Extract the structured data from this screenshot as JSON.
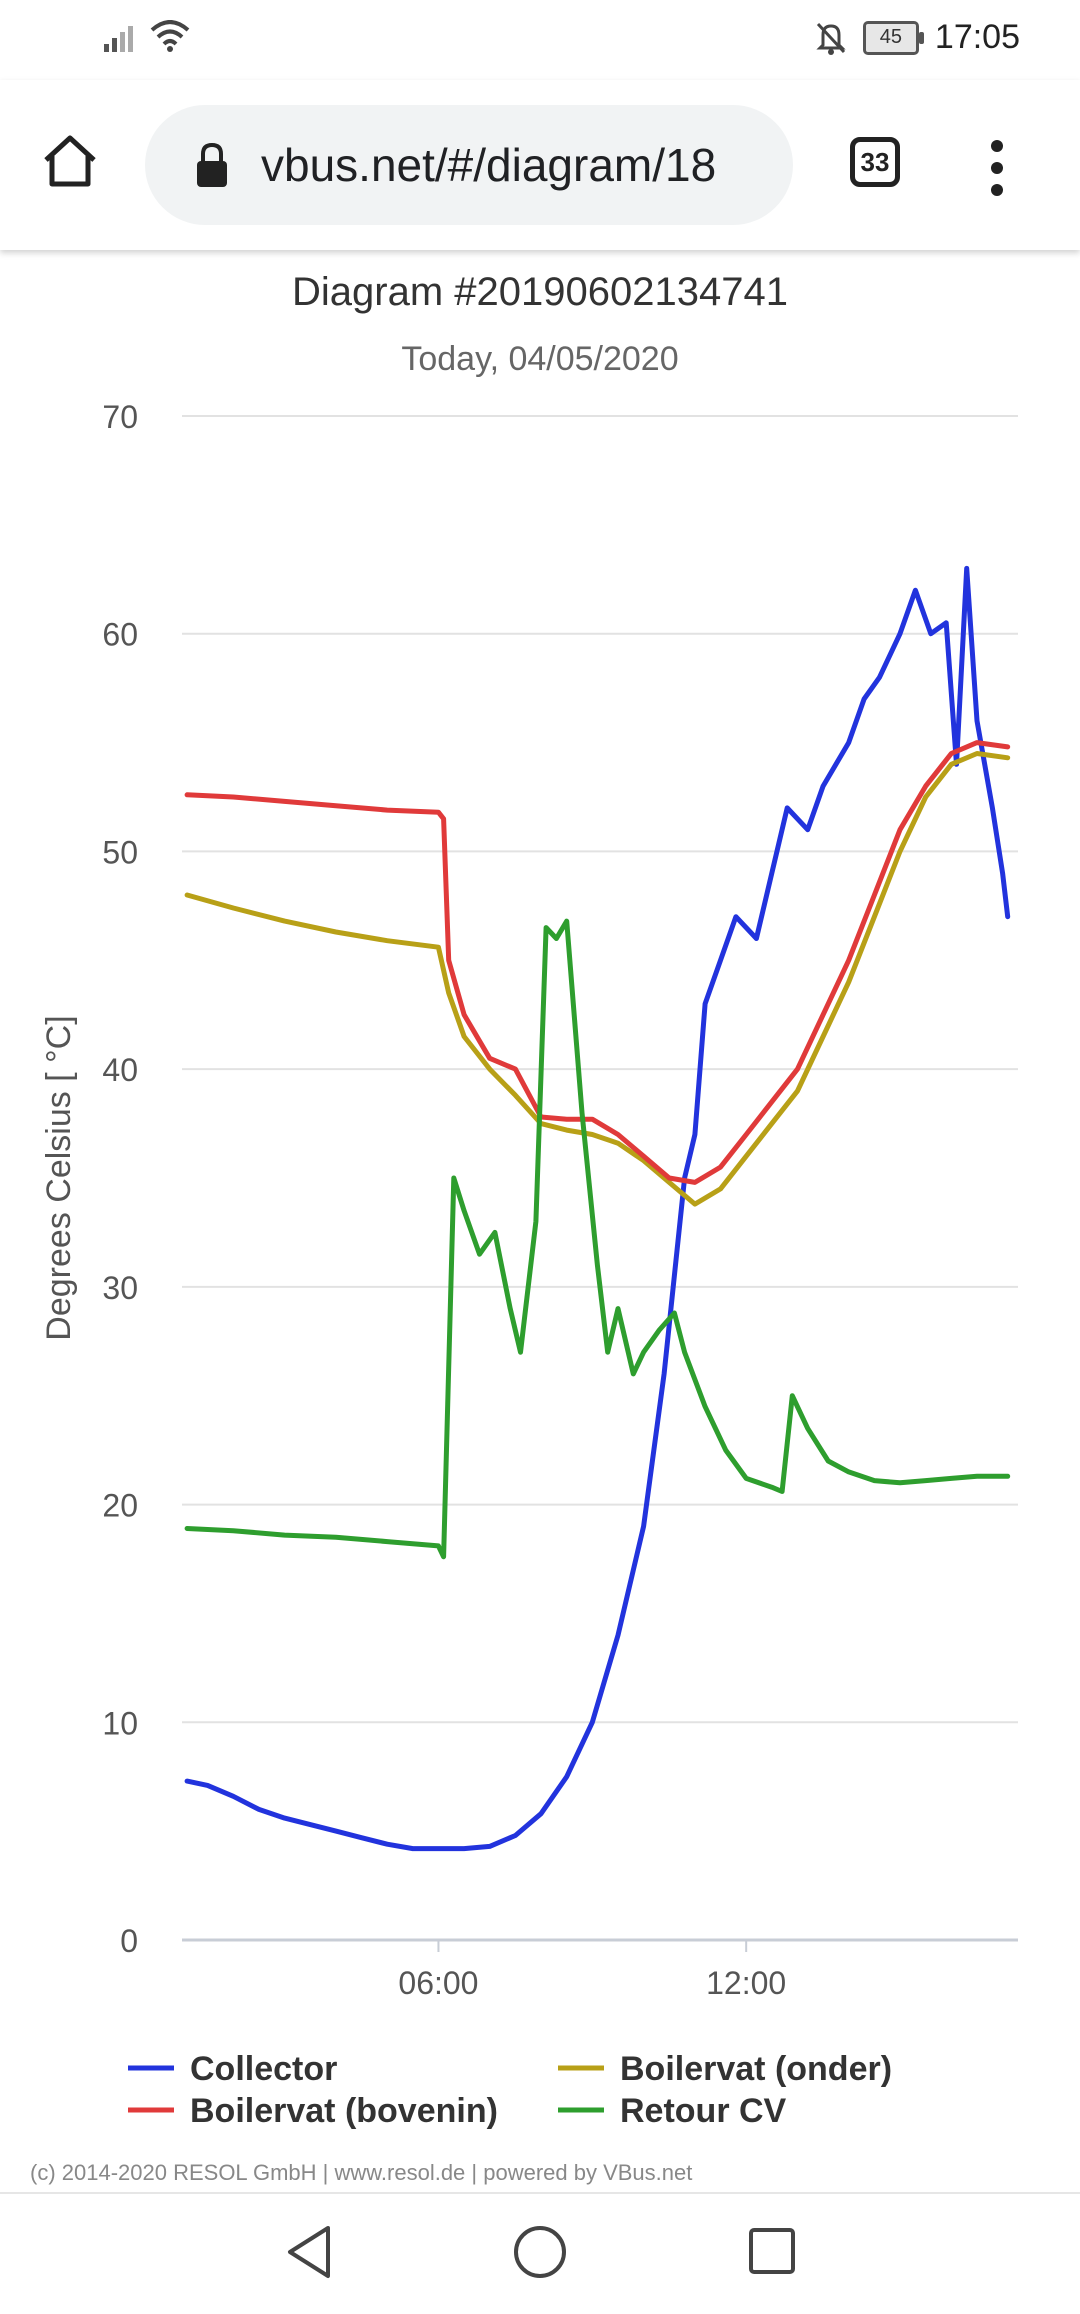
{
  "status_bar": {
    "time": "17:05",
    "battery": "45",
    "icons": [
      "signal-icon",
      "wifi-icon",
      "bell-off-icon",
      "battery-icon"
    ]
  },
  "browser": {
    "url": "vbus.net/#/diagram/18",
    "tab_count": "33",
    "icons": [
      "home-icon",
      "lock-icon",
      "tabs-icon",
      "more-icon"
    ]
  },
  "chart_data": {
    "type": "line",
    "title": "Diagram #20190602134741",
    "subtitle": "Today, 04/05/2020",
    "ylabel": "Degrees Celsius [ °C]",
    "xlabel": "",
    "ylim": [
      0,
      70
    ],
    "yticks": [
      "0",
      "10",
      "20",
      "30",
      "40",
      "50",
      "60",
      "70"
    ],
    "xlim": [
      1.0,
      17.3
    ],
    "xticks": [
      {
        "value": 6,
        "label": "06:00"
      },
      {
        "value": 12,
        "label": "12:00"
      }
    ],
    "grid": true,
    "legend_position": "bottom",
    "series": [
      {
        "name": "Collector",
        "color": "#2233dd",
        "points": [
          [
            1.1,
            7.3
          ],
          [
            1.5,
            7.1
          ],
          [
            2.0,
            6.6
          ],
          [
            2.5,
            6.0
          ],
          [
            3.0,
            5.6
          ],
          [
            3.5,
            5.3
          ],
          [
            4.0,
            5.0
          ],
          [
            4.5,
            4.7
          ],
          [
            5.0,
            4.4
          ],
          [
            5.5,
            4.2
          ],
          [
            6.0,
            4.2
          ],
          [
            6.5,
            4.2
          ],
          [
            7.0,
            4.3
          ],
          [
            7.5,
            4.8
          ],
          [
            8.0,
            5.8
          ],
          [
            8.5,
            7.5
          ],
          [
            9.0,
            10.0
          ],
          [
            9.5,
            14.0
          ],
          [
            10.0,
            19.0
          ],
          [
            10.4,
            26.0
          ],
          [
            10.8,
            35.0
          ],
          [
            11.0,
            37.0
          ],
          [
            11.2,
            43.0
          ],
          [
            11.5,
            45.0
          ],
          [
            11.8,
            47.0
          ],
          [
            12.2,
            46.0
          ],
          [
            12.5,
            49.0
          ],
          [
            12.8,
            52.0
          ],
          [
            13.2,
            51.0
          ],
          [
            13.5,
            53.0
          ],
          [
            14.0,
            55.0
          ],
          [
            14.3,
            57.0
          ],
          [
            14.6,
            58.0
          ],
          [
            15.0,
            60.0
          ],
          [
            15.3,
            62.0
          ],
          [
            15.6,
            60.0
          ],
          [
            15.9,
            60.5
          ],
          [
            16.1,
            54.0
          ],
          [
            16.3,
            63.0
          ],
          [
            16.5,
            56.0
          ],
          [
            16.8,
            52.0
          ],
          [
            17.0,
            49.0
          ],
          [
            17.1,
            47.0
          ]
        ]
      },
      {
        "name": "Boilervat (onder)",
        "color": "#b8a017",
        "points": [
          [
            1.1,
            48.0
          ],
          [
            2.0,
            47.4
          ],
          [
            3.0,
            46.8
          ],
          [
            4.0,
            46.3
          ],
          [
            5.0,
            45.9
          ],
          [
            6.0,
            45.6
          ],
          [
            6.2,
            43.5
          ],
          [
            6.5,
            41.5
          ],
          [
            7.0,
            40.0
          ],
          [
            7.5,
            38.8
          ],
          [
            8.0,
            37.5
          ],
          [
            8.5,
            37.2
          ],
          [
            9.0,
            37.0
          ],
          [
            9.5,
            36.6
          ],
          [
            10.0,
            35.8
          ],
          [
            10.5,
            34.8
          ],
          [
            11.0,
            33.8
          ],
          [
            11.5,
            34.5
          ],
          [
            12.0,
            36.0
          ],
          [
            12.5,
            37.5
          ],
          [
            13.0,
            39.0
          ],
          [
            13.5,
            41.5
          ],
          [
            14.0,
            44.0
          ],
          [
            14.5,
            47.0
          ],
          [
            15.0,
            50.0
          ],
          [
            15.5,
            52.5
          ],
          [
            16.0,
            54.0
          ],
          [
            16.5,
            54.5
          ],
          [
            17.1,
            54.3
          ]
        ]
      },
      {
        "name": "Boilervat (bovenin)",
        "color": "#e03a3a",
        "points": [
          [
            1.1,
            52.6
          ],
          [
            2.0,
            52.5
          ],
          [
            3.0,
            52.3
          ],
          [
            4.0,
            52.1
          ],
          [
            5.0,
            51.9
          ],
          [
            6.0,
            51.8
          ],
          [
            6.1,
            51.5
          ],
          [
            6.2,
            45.0
          ],
          [
            6.5,
            42.5
          ],
          [
            7.0,
            40.5
          ],
          [
            7.5,
            40.0
          ],
          [
            8.0,
            37.8
          ],
          [
            8.5,
            37.7
          ],
          [
            9.0,
            37.7
          ],
          [
            9.5,
            37.0
          ],
          [
            10.0,
            36.0
          ],
          [
            10.5,
            35.0
          ],
          [
            11.0,
            34.8
          ],
          [
            11.5,
            35.5
          ],
          [
            12.0,
            37.0
          ],
          [
            12.5,
            38.5
          ],
          [
            13.0,
            40.0
          ],
          [
            13.5,
            42.5
          ],
          [
            14.0,
            45.0
          ],
          [
            14.5,
            48.0
          ],
          [
            15.0,
            51.0
          ],
          [
            15.5,
            53.0
          ],
          [
            16.0,
            54.5
          ],
          [
            16.5,
            55.0
          ],
          [
            17.1,
            54.8
          ]
        ]
      },
      {
        "name": "Retour CV",
        "color": "#2e9e2e",
        "points": [
          [
            1.1,
            18.9
          ],
          [
            2.0,
            18.8
          ],
          [
            3.0,
            18.6
          ],
          [
            4.0,
            18.5
          ],
          [
            5.0,
            18.3
          ],
          [
            6.0,
            18.1
          ],
          [
            6.1,
            17.6
          ],
          [
            6.3,
            35.0
          ],
          [
            6.5,
            33.5
          ],
          [
            6.8,
            31.5
          ],
          [
            7.1,
            32.5
          ],
          [
            7.4,
            29.0
          ],
          [
            7.6,
            27.0
          ],
          [
            7.9,
            33.0
          ],
          [
            8.1,
            46.5
          ],
          [
            8.3,
            46.0
          ],
          [
            8.5,
            46.8
          ],
          [
            8.8,
            38.0
          ],
          [
            9.1,
            31.0
          ],
          [
            9.3,
            27.0
          ],
          [
            9.5,
            29.0
          ],
          [
            9.8,
            26.0
          ],
          [
            10.0,
            27.0
          ],
          [
            10.3,
            28.0
          ],
          [
            10.6,
            28.8
          ],
          [
            10.8,
            27.0
          ],
          [
            11.2,
            24.5
          ],
          [
            11.6,
            22.5
          ],
          [
            12.0,
            21.2
          ],
          [
            12.5,
            20.8
          ],
          [
            12.7,
            20.6
          ],
          [
            12.9,
            25.0
          ],
          [
            13.2,
            23.5
          ],
          [
            13.6,
            22.0
          ],
          [
            14.0,
            21.5
          ],
          [
            14.5,
            21.1
          ],
          [
            15.0,
            21.0
          ],
          [
            15.5,
            21.1
          ],
          [
            16.0,
            21.2
          ],
          [
            16.5,
            21.3
          ],
          [
            17.1,
            21.3
          ]
        ]
      }
    ]
  },
  "legend": {
    "items": [
      {
        "label": "Collector",
        "color": "#2233dd"
      },
      {
        "label": "Boilervat (onder)",
        "color": "#b8a017"
      },
      {
        "label": "Boilervat (bovenin)",
        "color": "#e03a3a"
      },
      {
        "label": "Retour CV",
        "color": "#2e9e2e"
      }
    ]
  },
  "footer": {
    "copyright": "(c) 2014-2020 RESOL GmbH | www.resol.de | powered by VBus.net"
  },
  "nav_bar": {
    "icons": [
      "back-icon",
      "home-circle-icon",
      "recents-icon"
    ]
  }
}
